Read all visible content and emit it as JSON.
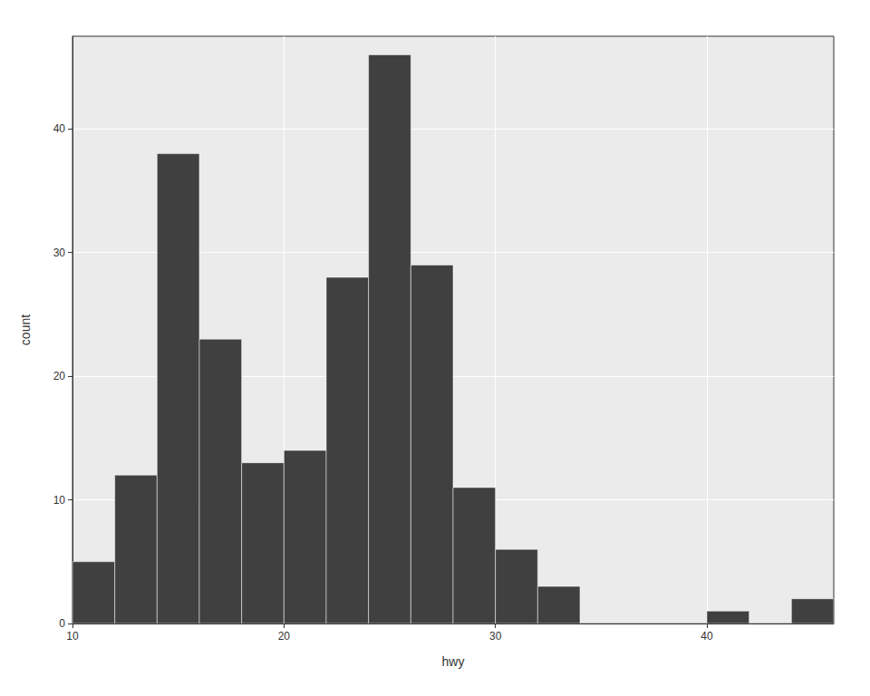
{
  "chart_data": {
    "type": "histogram",
    "bins": [
      10,
      12,
      14,
      16,
      18,
      20,
      22,
      24,
      26,
      28,
      30,
      32,
      34,
      36,
      38,
      40,
      42,
      44,
      46
    ],
    "counts": [
      5,
      12,
      38,
      23,
      13,
      14,
      28,
      46,
      29,
      11,
      6,
      3,
      0,
      0,
      0,
      1,
      0,
      2
    ],
    "color": "#404040",
    "xlabel": "hwy",
    "ylabel": "count",
    "xlim": [
      10,
      46
    ],
    "ylim": [
      0,
      47.5
    ],
    "xticks": [
      10,
      20,
      30,
      40
    ],
    "yticks": [
      0,
      10,
      20,
      30,
      40
    ],
    "grid": true
  }
}
